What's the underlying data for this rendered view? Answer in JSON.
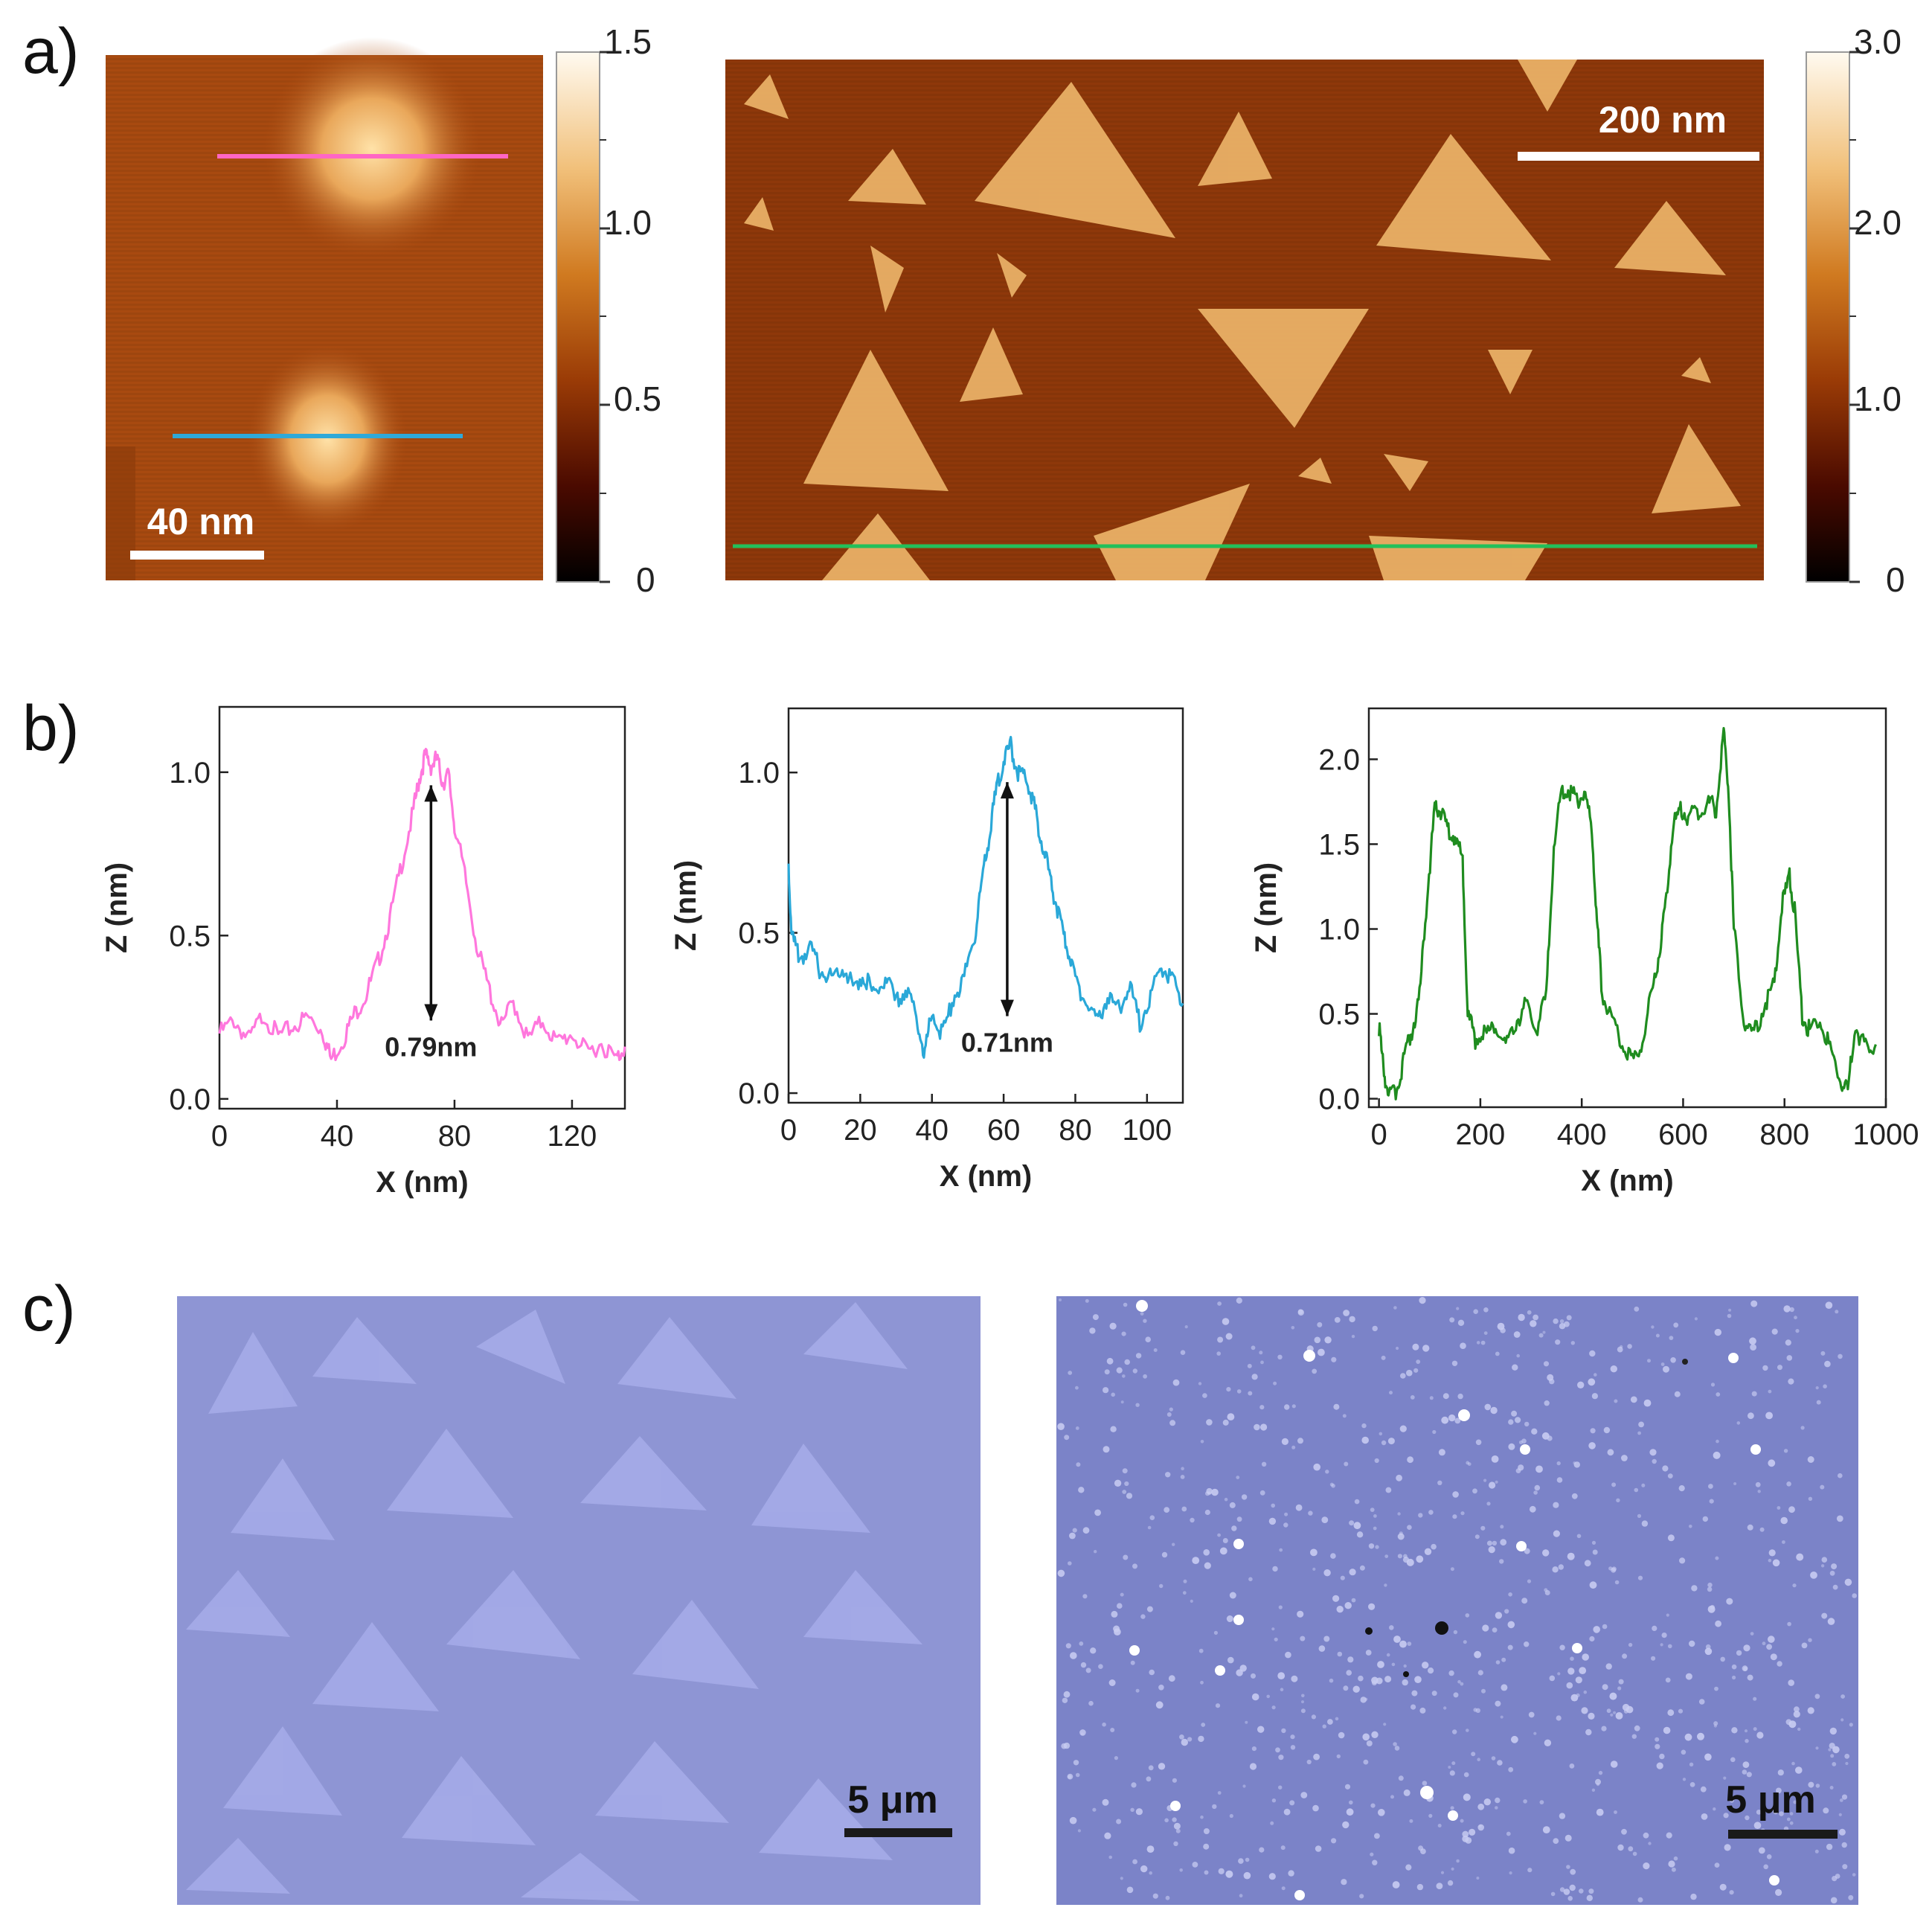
{
  "panels": {
    "a": "a)",
    "b": "b)",
    "c": "c)"
  },
  "afm": {
    "left": {
      "scale_bar": "40 nm",
      "colorbar_ticks": [
        "1.5",
        "1.0",
        "0.5",
        "0"
      ],
      "line_colors": [
        "#ff66c4",
        "#2fa9d8"
      ]
    },
    "right": {
      "scale_bar": "200 nm",
      "colorbar_ticks": [
        "3.0",
        "2.0",
        "1.0",
        "0"
      ],
      "line_color": "#22c05a"
    }
  },
  "chart_data": [
    {
      "type": "line",
      "color": "#ff77dd",
      "xlabel": "X (nm)",
      "ylabel": "Z (nm)",
      "xlim": [
        0,
        138
      ],
      "ylim": [
        -0.03,
        1.2
      ],
      "xticks": [
        "0",
        "40",
        "80",
        "120"
      ],
      "xtick_values": [
        0,
        40,
        80,
        120
      ],
      "yticks": [
        "0.0",
        "0.5",
        "1.0"
      ],
      "ytick_values": [
        0.0,
        0.5,
        1.0
      ],
      "annotation": "0.79nm",
      "arrow": {
        "x": 72,
        "y_from": 0.24,
        "y_to": 0.96
      },
      "x": [
        0,
        5,
        10,
        15,
        20,
        25,
        30,
        35,
        38,
        42,
        46,
        50,
        54,
        58,
        62,
        66,
        68,
        70,
        72,
        74,
        76,
        78,
        80,
        84,
        88,
        92,
        96,
        100,
        105,
        110,
        115,
        120,
        125,
        130,
        135,
        138
      ],
      "y": [
        0.2,
        0.24,
        0.18,
        0.26,
        0.19,
        0.22,
        0.25,
        0.21,
        0.12,
        0.18,
        0.26,
        0.32,
        0.42,
        0.55,
        0.72,
        0.88,
        0.98,
        1.05,
        1.02,
        1.04,
        0.97,
        0.99,
        0.84,
        0.66,
        0.45,
        0.33,
        0.22,
        0.3,
        0.18,
        0.24,
        0.17,
        0.2,
        0.14,
        0.17,
        0.12,
        0.16
      ]
    },
    {
      "type": "line",
      "color": "#2aa8d8",
      "xlabel": "X (nm)",
      "ylabel": "Z (nm)",
      "xlim": [
        0,
        110
      ],
      "ylim": [
        -0.03,
        1.2
      ],
      "xticks": [
        "0",
        "20",
        "40",
        "60",
        "80",
        "100"
      ],
      "xtick_values": [
        0,
        20,
        40,
        60,
        80,
        100
      ],
      "yticks": [
        "0.0",
        "0.5",
        "1.0"
      ],
      "ytick_values": [
        0.0,
        0.5,
        1.0
      ],
      "annotation": "0.71nm",
      "arrow": {
        "x": 61,
        "y_from": 0.24,
        "y_to": 0.97
      },
      "x": [
        0,
        1,
        3,
        6,
        9,
        12,
        15,
        18,
        21,
        24,
        27,
        30,
        33,
        36,
        38,
        40,
        43,
        46,
        49,
        52,
        54,
        56,
        58,
        60,
        62,
        64,
        66,
        68,
        70,
        72,
        74,
        76,
        78,
        80,
        83,
        86,
        89,
        92,
        95,
        98,
        101,
        104,
        107,
        110
      ],
      "y": [
        0.7,
        0.48,
        0.42,
        0.45,
        0.38,
        0.36,
        0.4,
        0.33,
        0.37,
        0.3,
        0.36,
        0.28,
        0.33,
        0.22,
        0.12,
        0.26,
        0.18,
        0.3,
        0.36,
        0.5,
        0.66,
        0.8,
        0.95,
        1.04,
        1.08,
        1.0,
        0.99,
        0.92,
        0.82,
        0.72,
        0.62,
        0.52,
        0.44,
        0.36,
        0.28,
        0.22,
        0.3,
        0.26,
        0.34,
        0.22,
        0.3,
        0.4,
        0.35,
        0.28
      ]
    },
    {
      "type": "line",
      "color": "#1f8c1f",
      "xlabel": "X (nm)",
      "ylabel": "Z (nm)",
      "xlim": [
        -20,
        1000
      ],
      "ylim": [
        -0.05,
        2.3
      ],
      "xticks": [
        "0",
        "200",
        "400",
        "600",
        "800",
        "1000"
      ],
      "xtick_values": [
        0,
        200,
        400,
        600,
        800,
        1000
      ],
      "yticks": [
        "0.0",
        "0.5",
        "1.0",
        "1.5",
        "2.0"
      ],
      "ytick_values": [
        0.0,
        0.5,
        1.0,
        1.5,
        2.0
      ],
      "x": [
        0,
        10,
        20,
        35,
        50,
        65,
        80,
        95,
        110,
        120,
        135,
        150,
        165,
        175,
        190,
        210,
        230,
        250,
        270,
        290,
        310,
        330,
        345,
        360,
        375,
        390,
        405,
        420,
        430,
        440,
        460,
        480,
        500,
        520,
        540,
        555,
        565,
        580,
        595,
        610,
        630,
        650,
        665,
        680,
        690,
        700,
        720,
        740,
        760,
        780,
        795,
        810,
        820,
        835,
        850,
        870,
        890,
        910,
        925,
        940,
        960,
        980
      ],
      "y": [
        0.42,
        0.15,
        0.02,
        0.05,
        0.25,
        0.4,
        0.6,
        1.2,
        1.7,
        1.7,
        1.6,
        1.55,
        1.4,
        0.5,
        0.35,
        0.38,
        0.42,
        0.32,
        0.45,
        0.55,
        0.4,
        0.6,
        1.5,
        1.8,
        1.82,
        1.76,
        1.8,
        1.6,
        1.05,
        0.62,
        0.45,
        0.32,
        0.22,
        0.35,
        0.65,
        0.9,
        1.15,
        1.6,
        1.72,
        1.65,
        1.7,
        1.75,
        1.7,
        2.15,
        1.8,
        1.0,
        0.45,
        0.38,
        0.55,
        0.68,
        1.15,
        1.3,
        1.1,
        0.48,
        0.4,
        0.45,
        0.3,
        0.12,
        0.05,
        0.42,
        0.3,
        0.32
      ]
    }
  ],
  "optical": {
    "left_scale_bar": "5 μm",
    "right_scale_bar": "5 μm"
  }
}
